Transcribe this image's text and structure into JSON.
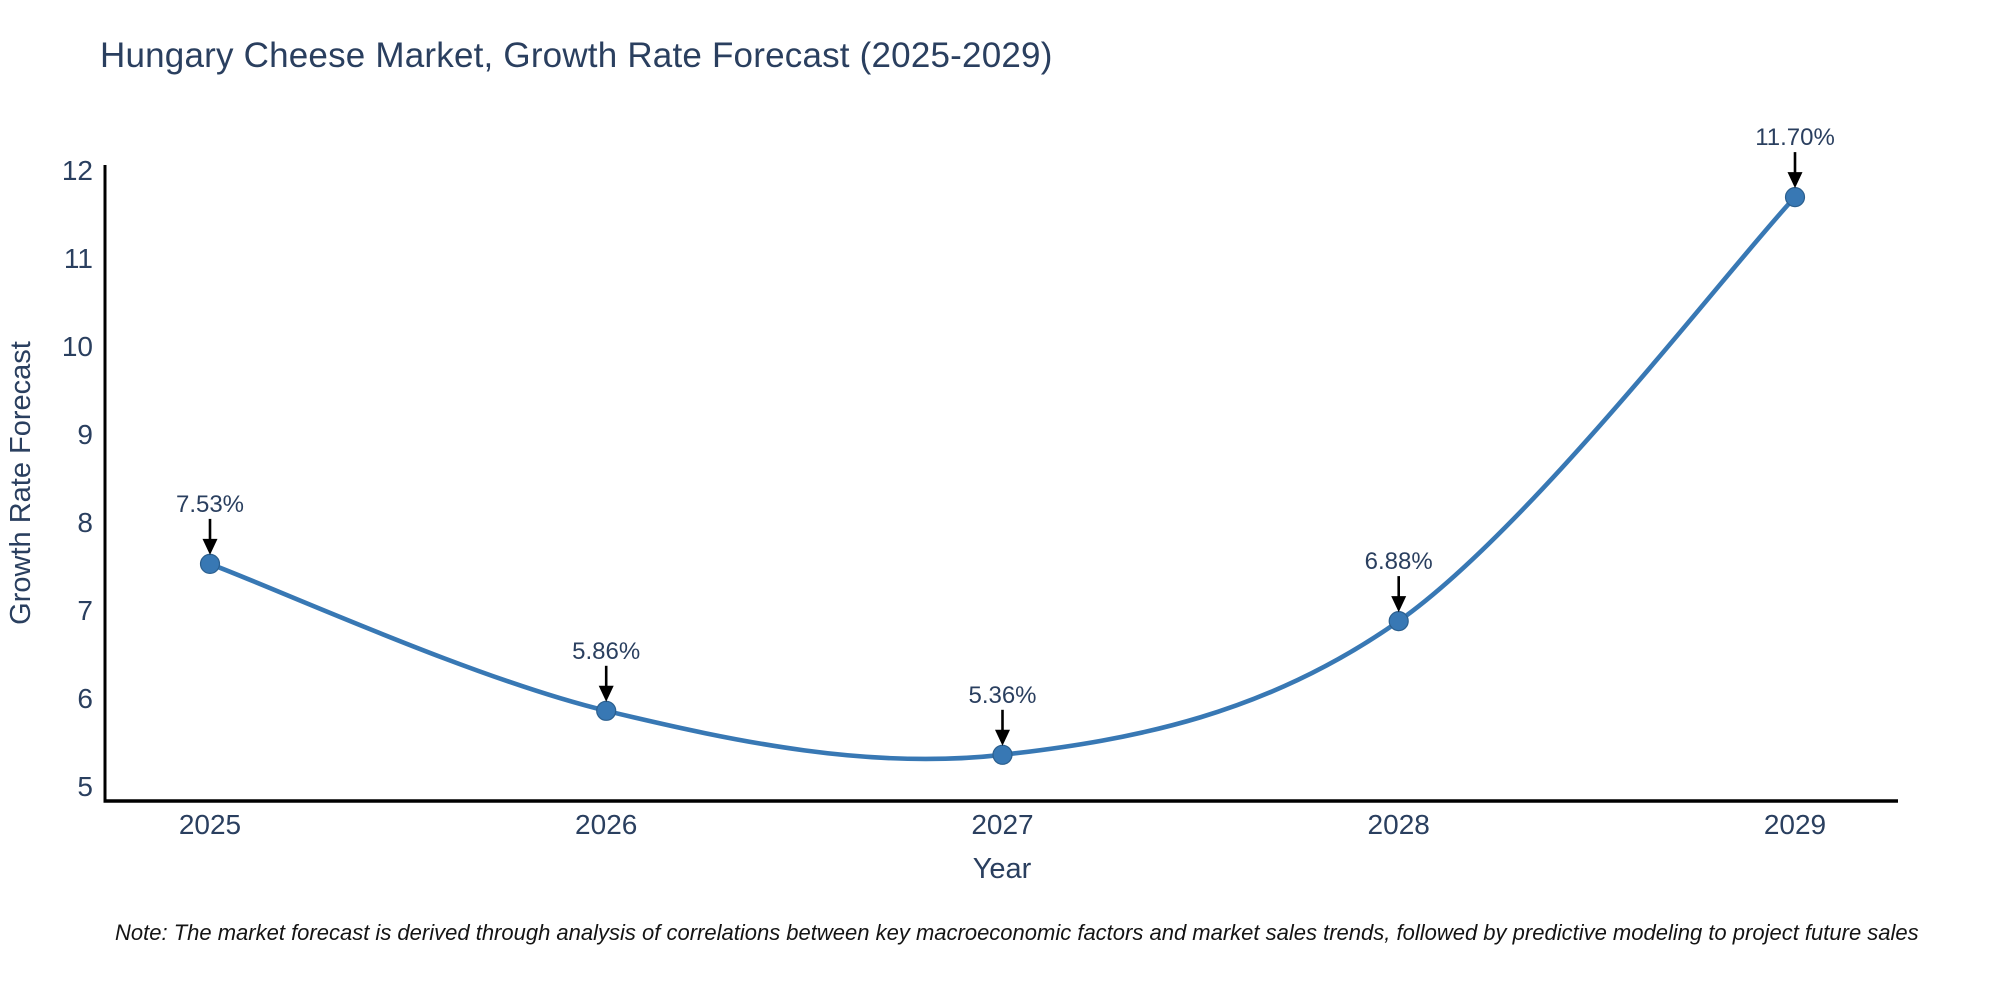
{
  "title": "Hungary Cheese Market, Growth Rate Forecast (2025-2029)",
  "note": "Note: The market forecast is derived through analysis of correlations between key macroeconomic factors and market sales trends, followed by predictive modeling to project future sales",
  "chart_data": {
    "type": "line",
    "title": "Hungary Cheese Market, Growth Rate Forecast (2025-2029)",
    "x": [
      2025,
      2026,
      2027,
      2028,
      2029
    ],
    "values": [
      7.53,
      5.86,
      5.36,
      6.88,
      11.7
    ],
    "point_labels": [
      "7.53%",
      "5.86%",
      "5.36%",
      "6.88%",
      "11.70%"
    ],
    "xlabel": "Year",
    "ylabel": "Growth Rate Forecast",
    "x_tick_labels": [
      "2025",
      "2026",
      "2027",
      "2028",
      "2029"
    ],
    "y_ticks": [
      5,
      6,
      7,
      8,
      9,
      10,
      11,
      12
    ],
    "xlim": [
      2024.735,
      2029.26
    ],
    "ylim": [
      4.835,
      12.065
    ],
    "line_shape": "spline",
    "grid": false,
    "legend": "none",
    "colors": {
      "line": "#3878b4",
      "marker": "#3878b4",
      "marker_edge": "#2b5f8e",
      "arrow": "#000000",
      "text": "#2a3f5f",
      "axis_line": "#000000",
      "background": "#ffffff"
    }
  }
}
